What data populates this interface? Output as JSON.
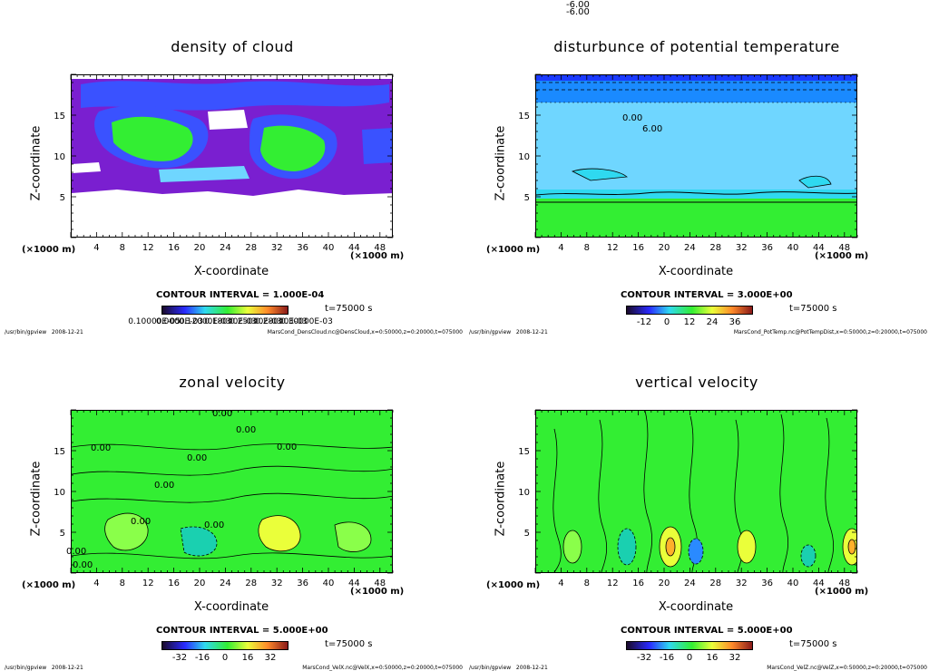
{
  "footer_program": "/usr/bin/gpview",
  "footer_date": "2008-12-21",
  "colors": {
    "purple": "#7a1fd0",
    "blue": "#3a52ff",
    "cyan": "#2fd9f0",
    "lightblue": "#6fd6ff",
    "green": "#33ee33",
    "lightgreen": "#8aff4a",
    "yellow": "#eaff3a",
    "darkblue": "#1a3aff"
  },
  "panels": [
    {
      "title": "density of cloud",
      "xlabel": "X-coordinate",
      "ylabel": "Z-coordinate",
      "x_unit": "(×1000 m)",
      "x_ticks": [
        "4",
        "8",
        "12",
        "16",
        "20",
        "24",
        "28",
        "32",
        "36",
        "40",
        "44",
        "48"
      ],
      "y_ticks": [
        "5",
        "10",
        "15"
      ],
      "contour_interval": "CONTOUR INTERVAL = 1.000E-04",
      "time_label": "t=75000 s",
      "colorbar_labels": [
        "0.10000E-05",
        "0.0000E-03",
        "0.12000E-03",
        "0.18000E-03",
        "0.25000E-03",
        "0.28000E-03",
        "0.30000E-03"
      ],
      "footer_file": "MarsCond_DensCloud.nc@DensCloud,x=0:50000,z=0:20000,t=075000",
      "contour_labels": [],
      "chart_data": {
        "type": "heatmap",
        "title": "density of cloud",
        "xlabel": "X-coordinate",
        "ylabel": "Z-coordinate",
        "xlim": [
          0,
          50
        ],
        "ylim": [
          0,
          20
        ],
        "contour_interval": 0.0001,
        "time_s": 75000,
        "features": "cloud layer between z≈6 and z≈19 (×1000 m), gap near z≈13–14 at x≈18–28"
      }
    },
    {
      "title": "disturbunce of potential temperature",
      "xlabel": "X-coordinate",
      "ylabel": "Z-coordinate",
      "x_unit": "(×1000 m)",
      "x_ticks": [
        "4",
        "8",
        "12",
        "16",
        "20",
        "24",
        "28",
        "32",
        "36",
        "40",
        "44",
        "48"
      ],
      "y_ticks": [
        "5",
        "10",
        "15"
      ],
      "contour_interval": "CONTOUR INTERVAL = 3.000E+00",
      "time_label": "t=75000 s",
      "colorbar_labels": [
        "-12",
        "0",
        "12",
        "24",
        "36"
      ],
      "footer_file": "MarsCond_PotTemp.nc@PotTempDist,x=0:50000,z=0:20000,t=075000",
      "contour_labels": [
        "-6.00",
        "-6.00",
        "0.00",
        "6.00"
      ],
      "chart_data": {
        "type": "heatmap",
        "title": "disturbunce of potential temperature",
        "xlabel": "X-coordinate",
        "ylabel": "Z-coordinate",
        "xlim": [
          0,
          50
        ],
        "ylim": [
          0,
          20
        ],
        "contour_interval": 3.0,
        "time_s": 75000,
        "contour_values": [
          -6,
          -6,
          0,
          6
        ]
      }
    },
    {
      "title": "zonal velocity",
      "xlabel": "X-coordinate",
      "ylabel": "Z-coordinate",
      "x_unit": "(×1000 m)",
      "x_ticks": [
        "4",
        "8",
        "12",
        "16",
        "20",
        "24",
        "28",
        "32",
        "36",
        "40",
        "44",
        "48"
      ],
      "y_ticks": [
        "5",
        "10",
        "15"
      ],
      "contour_interval": "CONTOUR INTERVAL = 5.000E+00",
      "time_label": "t=75000 s",
      "colorbar_labels": [
        "-32",
        "-16",
        "0",
        "16",
        "32"
      ],
      "footer_file": "MarsCond_VelX.nc@VelX,x=0:50000,z=0:20000,t=075000",
      "contour_labels": [
        "0.00",
        "0.00",
        "0.00",
        "0.00",
        "0.00",
        "0.00",
        "0.00",
        "0.00",
        "0.00",
        "0.00"
      ],
      "chart_data": {
        "type": "heatmap",
        "title": "zonal velocity",
        "xlabel": "X-coordinate",
        "ylabel": "Z-coordinate",
        "xlim": [
          0,
          50
        ],
        "ylim": [
          0,
          20
        ],
        "contour_interval": 5.0,
        "time_s": 75000
      }
    },
    {
      "title": "vertical velocity",
      "xlabel": "X-coordinate",
      "ylabel": "Z-coordinate",
      "x_unit": "(×1000 m)",
      "x_ticks": [
        "4",
        "8",
        "12",
        "16",
        "20",
        "24",
        "28",
        "32",
        "36",
        "40",
        "44",
        "48"
      ],
      "y_ticks": [
        "5",
        "10",
        "15"
      ],
      "contour_interval": "CONTOUR INTERVAL = 5.000E+00",
      "time_label": "t=75000 s",
      "colorbar_labels": [
        "-32",
        "-16",
        "0",
        "16",
        "32"
      ],
      "footer_file": "MarsCond_VelZ.nc@VelZ,x=0:50000,z=0:20000,t=075000",
      "contour_labels": [],
      "chart_data": {
        "type": "heatmap",
        "title": "vertical velocity",
        "xlabel": "X-coordinate",
        "ylabel": "Z-coordinate",
        "xlim": [
          0,
          50
        ],
        "ylim": [
          0,
          20
        ],
        "contour_interval": 5.0,
        "time_s": 75000
      }
    }
  ]
}
